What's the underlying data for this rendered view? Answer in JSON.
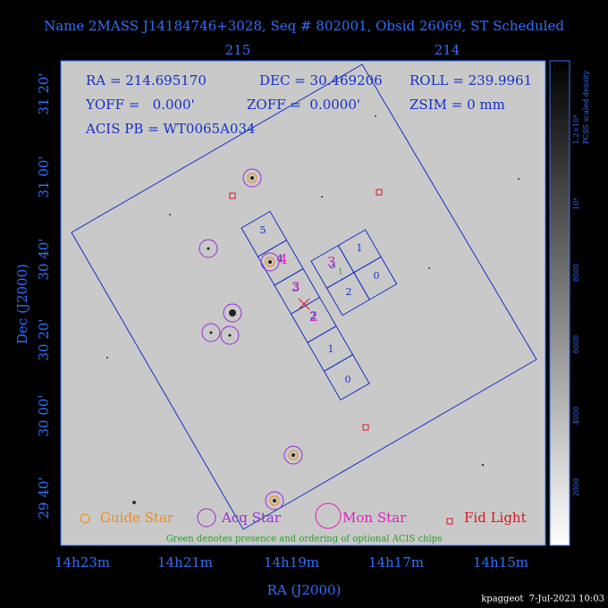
{
  "header": {
    "title": "Name 2MASS J14184746+3028, Seq # 802001, Obsid 26069, ST Scheduled"
  },
  "top_axis": [
    "215",
    "214"
  ],
  "info": [
    "RA = 214.695170",
    "DEC = 30.469206",
    "ROLL = 239.9961",
    "YOFF =   0.000'",
    "ZOFF =  0.0000'",
    "ZSIM = 0 mm",
    "ACIS PB = WT0065A034"
  ],
  "y_axis": {
    "title": "Dec (J2000)",
    "labels": [
      "31 20'",
      "31 00'",
      "30 40'",
      "30 20'",
      "30 00'",
      "29 40'"
    ]
  },
  "x_axis": {
    "title": "RA (J2000)",
    "labels": [
      "14h23m",
      "14h21m",
      "14h19m",
      "14h17m",
      "14h15m"
    ]
  },
  "s_chips": [
    "5",
    "4",
    "3",
    "2",
    "1",
    "0"
  ],
  "i_chips": [
    "3",
    "1",
    "2",
    "0"
  ],
  "optional_chip": "1",
  "markers": [
    "4",
    "3",
    "2"
  ],
  "legend": [
    "Guide Star",
    "Acq Star",
    "Mon Star",
    "Fid Light"
  ],
  "note": "Green denotes presence and ordering of optional ACIS chips",
  "colorbar": {
    "title": "PCSS scaled density",
    "labels": [
      "2000",
      "4000",
      "6000",
      "8000",
      "10⁴",
      "1.2×10⁴"
    ]
  },
  "footer": "kpaggeot  7-Jul-2023 10:03"
}
